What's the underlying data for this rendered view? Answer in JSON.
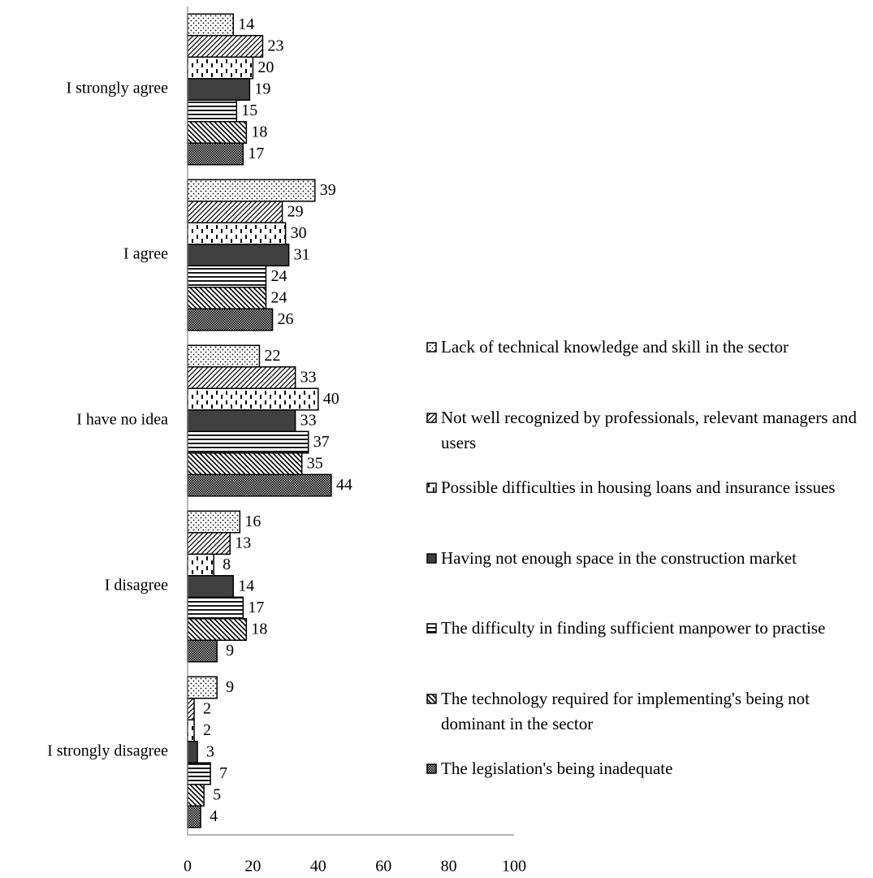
{
  "chart_data": {
    "type": "hbar",
    "categories": [
      "I strongly agree",
      "I agree",
      "I have no idea",
      "I disagree",
      "I strongly disagree"
    ],
    "series": [
      {
        "name": "Lack of technical knowledge and skill in the sector",
        "color": "#000000",
        "pattern": "dots",
        "values": [
          14,
          39,
          22,
          16,
          9
        ]
      },
      {
        "name": "Not well recognized by professionals, relevant managers and users",
        "color": "#000000",
        "pattern": "diagonal-up",
        "values": [
          23,
          29,
          33,
          13,
          2
        ]
      },
      {
        "name": "Possible difficulties in housing loans and insurance issues",
        "color": "#000000",
        "pattern": "vertical-dashes",
        "values": [
          20,
          30,
          40,
          8,
          2
        ]
      },
      {
        "name": "Having not enough space in the construction market",
        "color": "#404040",
        "pattern": "solid",
        "values": [
          19,
          31,
          33,
          14,
          3
        ]
      },
      {
        "name": "The difficulty in finding sufficient manpower to practise",
        "color": "#000000",
        "pattern": "horizontal",
        "values": [
          15,
          24,
          37,
          17,
          7
        ]
      },
      {
        "name": "The technology required for implementing's being not dominant in the sector",
        "color": "#000000",
        "pattern": "diagonal-down",
        "values": [
          18,
          24,
          35,
          18,
          5
        ]
      },
      {
        "name": "The legislation's being inadequate",
        "color": "#000000",
        "pattern": "crosshatch",
        "values": [
          17,
          26,
          44,
          9,
          4
        ]
      }
    ],
    "xlim": [
      0,
      100
    ],
    "xticks": [
      0,
      20,
      40,
      60,
      80,
      100
    ],
    "grid": false,
    "legend": "right"
  }
}
